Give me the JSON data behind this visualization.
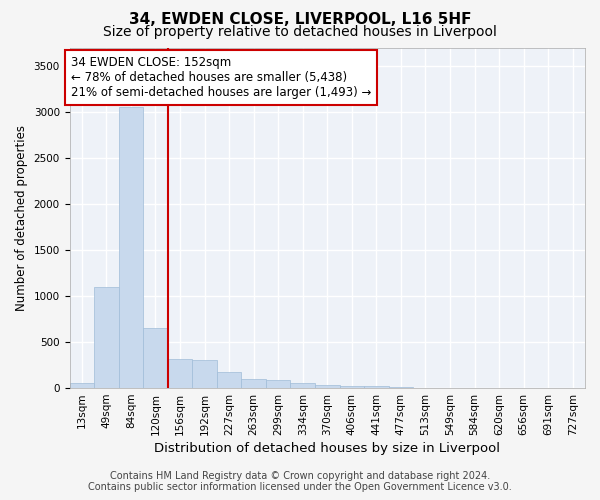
{
  "title": "34, EWDEN CLOSE, LIVERPOOL, L16 5HF",
  "subtitle": "Size of property relative to detached houses in Liverpool",
  "xlabel": "Distribution of detached houses by size in Liverpool",
  "ylabel": "Number of detached properties",
  "bar_color": "#c8d9ed",
  "bar_edge_color": "#a0bcd8",
  "background_color": "#eef2f8",
  "grid_color": "#ffffff",
  "fig_background": "#f5f5f5",
  "annotation_box_color": "#cc0000",
  "vline_color": "#cc0000",
  "vline_x_bin": 3,
  "annotation_text": "34 EWDEN CLOSE: 152sqm\n← 78% of detached houses are smaller (5,438)\n21% of semi-detached houses are larger (1,493) →",
  "footer1": "Contains HM Land Registry data © Crown copyright and database right 2024.",
  "footer2": "Contains public sector information licensed under the Open Government Licence v3.0.",
  "bin_labels": [
    "13sqm",
    "49sqm",
    "84sqm",
    "120sqm",
    "156sqm",
    "192sqm",
    "227sqm",
    "263sqm",
    "299sqm",
    "334sqm",
    "370sqm",
    "406sqm",
    "441sqm",
    "477sqm",
    "513sqm",
    "549sqm",
    "584sqm",
    "620sqm",
    "656sqm",
    "691sqm",
    "727sqm"
  ],
  "bar_heights": [
    50,
    1100,
    3050,
    650,
    320,
    310,
    175,
    100,
    90,
    55,
    30,
    25,
    20,
    15,
    5,
    3,
    2,
    1,
    1,
    1,
    1
  ],
  "ylim": [
    0,
    3700
  ],
  "yticks": [
    0,
    500,
    1000,
    1500,
    2000,
    2500,
    3000,
    3500
  ],
  "title_fontsize": 11,
  "subtitle_fontsize": 10,
  "xlabel_fontsize": 9.5,
  "ylabel_fontsize": 8.5,
  "tick_fontsize": 7.5,
  "annotation_fontsize": 8.5,
  "footer_fontsize": 7
}
